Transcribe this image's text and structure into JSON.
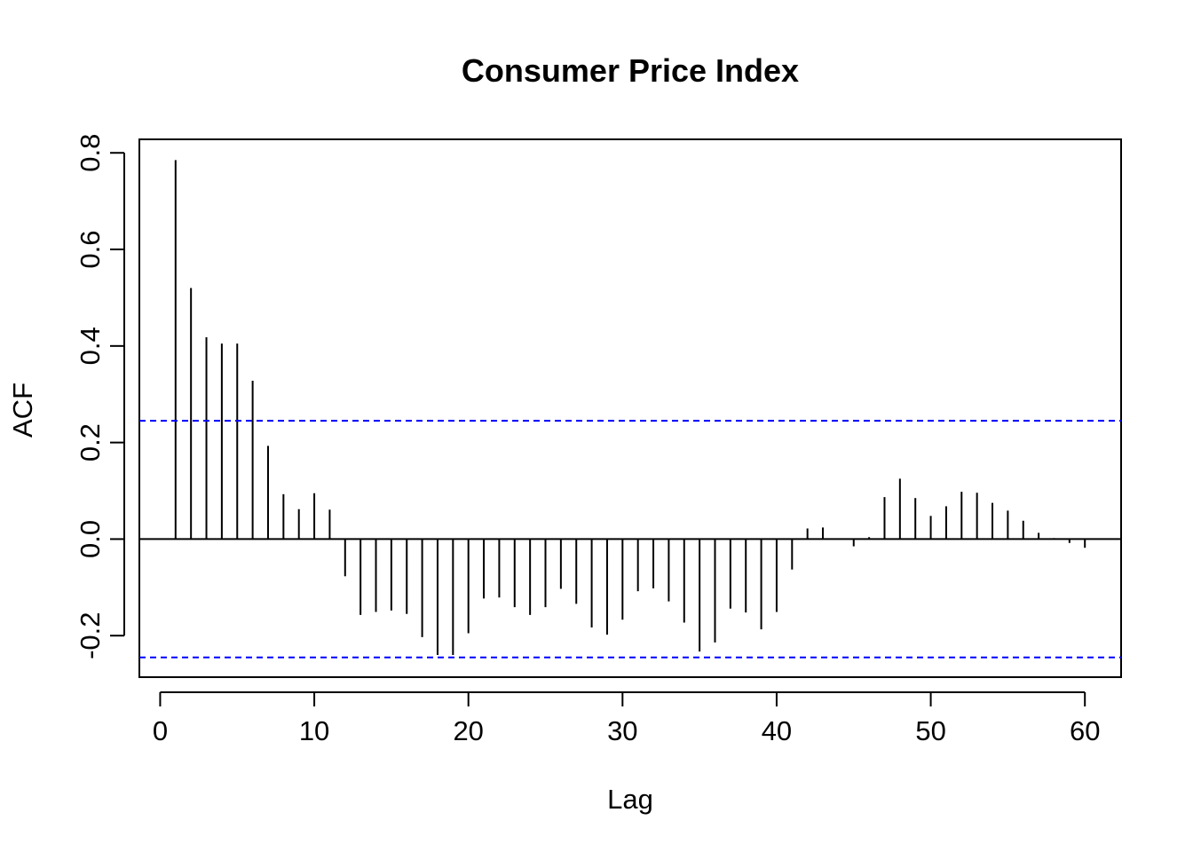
{
  "chart_data": {
    "type": "bar",
    "title": "Consumer Price Index",
    "xlabel": "Lag",
    "ylabel": "ACF",
    "xlim": [
      -1.35,
      62.35
    ],
    "ylim": [
      -0.286,
      0.828
    ],
    "x_ticks": [
      0,
      10,
      20,
      30,
      40,
      50,
      60
    ],
    "x_tick_labels": [
      "0",
      "10",
      "20",
      "30",
      "40",
      "50",
      "60"
    ],
    "y_ticks": [
      -0.2,
      0.0,
      0.2,
      0.4,
      0.6,
      0.8
    ],
    "y_tick_labels": [
      "-0.2",
      "0.0",
      "0.2",
      "0.4",
      "0.6",
      "0.8"
    ],
    "grid": false,
    "confidence_bounds": [
      0.245,
      -0.245
    ],
    "confidence_color": "#0000ff",
    "bar_color": "#000000",
    "lags": [
      1,
      2,
      3,
      4,
      5,
      6,
      7,
      8,
      9,
      10,
      11,
      12,
      13,
      14,
      15,
      16,
      17,
      18,
      19,
      20,
      21,
      22,
      23,
      24,
      25,
      26,
      27,
      28,
      29,
      30,
      31,
      32,
      33,
      34,
      35,
      36,
      37,
      38,
      39,
      40,
      41,
      42,
      43,
      44,
      45,
      46,
      47,
      48,
      49,
      50,
      51,
      52,
      53,
      54,
      55,
      56,
      57,
      58,
      59,
      60
    ],
    "values": [
      0.785,
      0.52,
      0.418,
      0.405,
      0.405,
      0.328,
      0.193,
      0.093,
      0.062,
      0.095,
      0.061,
      -0.077,
      -0.157,
      -0.151,
      -0.148,
      -0.155,
      -0.203,
      -0.24,
      -0.24,
      -0.195,
      -0.123,
      -0.121,
      -0.141,
      -0.157,
      -0.141,
      -0.103,
      -0.134,
      -0.183,
      -0.198,
      -0.167,
      -0.108,
      -0.102,
      -0.129,
      -0.173,
      -0.233,
      -0.214,
      -0.144,
      -0.152,
      -0.187,
      -0.151,
      -0.063,
      0.022,
      0.024,
      0.001,
      -0.015,
      0.004,
      0.087,
      0.125,
      0.085,
      0.048,
      0.068,
      0.098,
      0.096,
      0.075,
      0.059,
      0.038,
      0.013,
      0.002,
      -0.008,
      -0.018
    ]
  }
}
